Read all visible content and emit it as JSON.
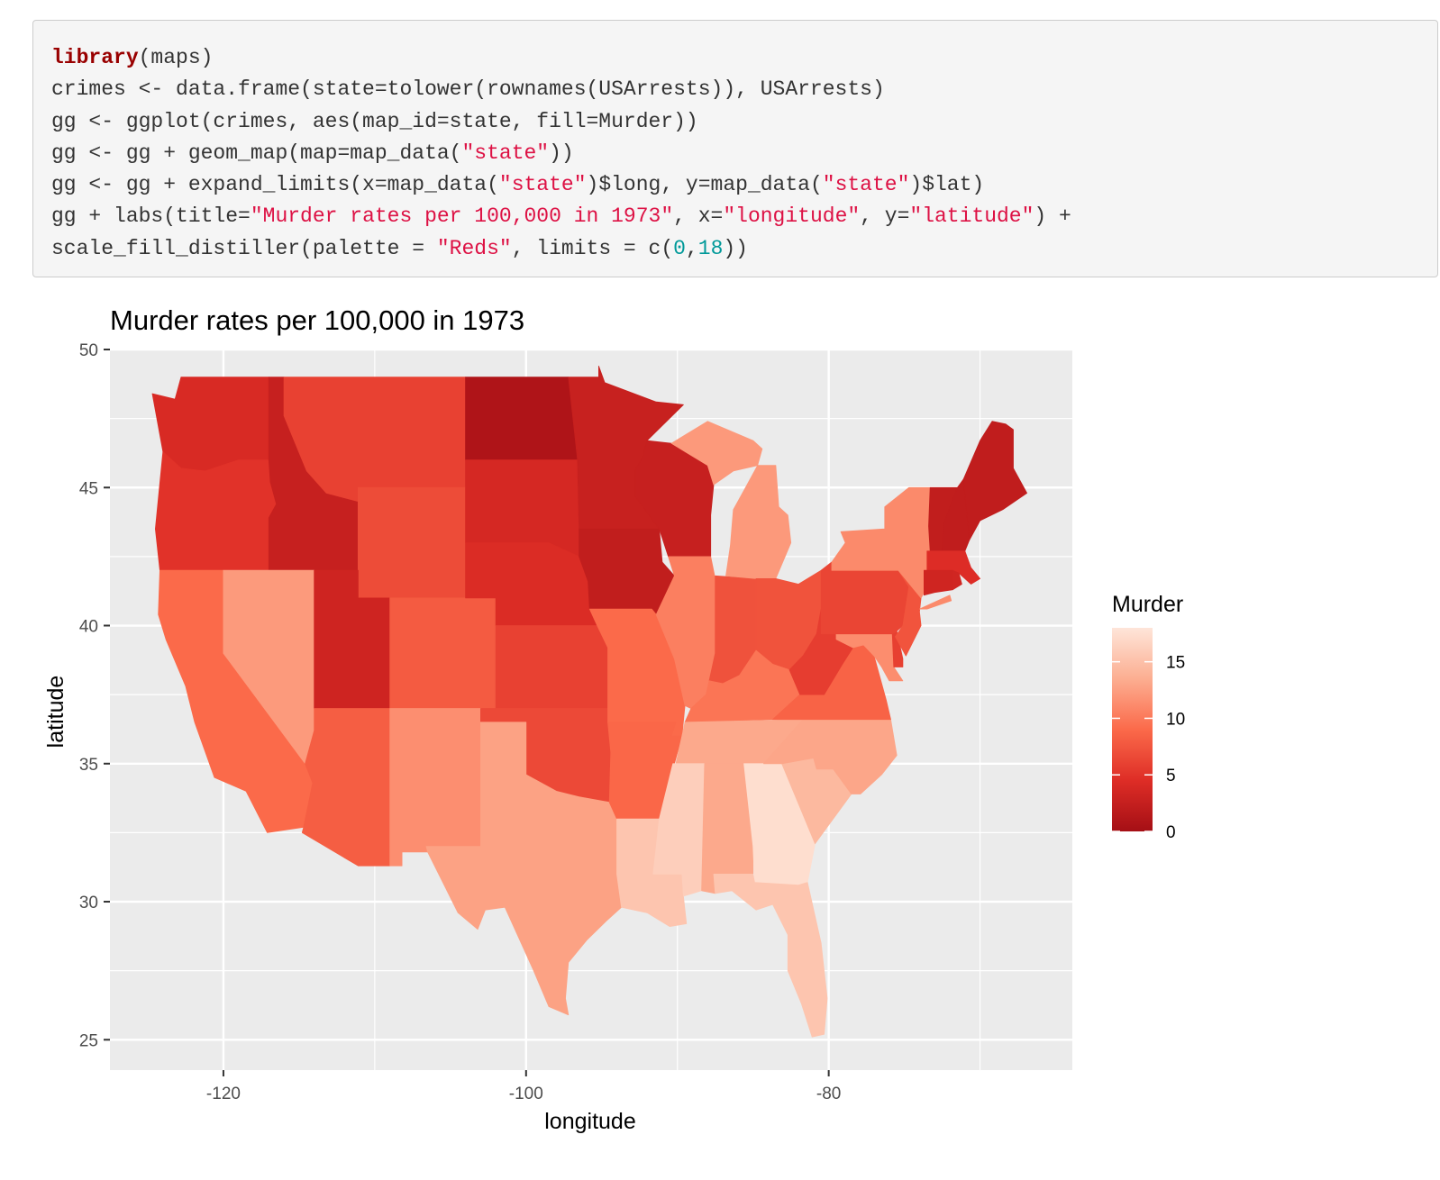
{
  "code": {
    "lines": [
      [
        {
          "t": "library",
          "c": "kw"
        },
        {
          "t": "(maps)"
        }
      ],
      [
        {
          "t": "crimes <- data.frame(state=tolower(rownames(USArrests)), USArrests)"
        }
      ],
      [
        {
          "t": "gg <- ggplot(crimes, aes(map_id=state, fill=Murder))"
        }
      ],
      [
        {
          "t": "gg <- gg + geom_map(map=map_data("
        },
        {
          "t": "\"state\"",
          "c": "str"
        },
        {
          "t": "))"
        }
      ],
      [
        {
          "t": "gg <- gg + expand_limits(x=map_data("
        },
        {
          "t": "\"state\"",
          "c": "str"
        },
        {
          "t": ")$long, y=map_data("
        },
        {
          "t": "\"state\"",
          "c": "str"
        },
        {
          "t": ")$lat)"
        }
      ],
      [
        {
          "t": "gg + labs(title="
        },
        {
          "t": "\"Murder rates per 100,000 in 1973\"",
          "c": "str"
        },
        {
          "t": ", x="
        },
        {
          "t": "\"longitude\"",
          "c": "str"
        },
        {
          "t": ", y="
        },
        {
          "t": "\"latitude\"",
          "c": "str"
        },
        {
          "t": ") +"
        }
      ],
      [
        {
          "t": "scale_fill_distiller(palette = "
        },
        {
          "t": "\"Reds\"",
          "c": "str"
        },
        {
          "t": ", limits = c("
        },
        {
          "t": "0",
          "c": "num"
        },
        {
          "t": ","
        },
        {
          "t": "18",
          "c": "num"
        },
        {
          "t": "))"
        }
      ]
    ]
  },
  "chart_data": {
    "type": "choropleth map",
    "title": "Murder rates per 100,000 in 1973",
    "xlabel": "longitude",
    "ylabel": "latitude",
    "xlim": [
      -127.5,
      -63.9
    ],
    "ylim": [
      23.9,
      50.0
    ],
    "x_ticks": [
      -120,
      -100,
      -80
    ],
    "y_ticks": [
      25,
      30,
      35,
      40,
      45,
      50
    ],
    "grid": true,
    "legend": {
      "title": "Murder",
      "position": "right",
      "limits": [
        0,
        18
      ],
      "ticks": [
        0,
        5,
        10,
        15
      ],
      "colors": [
        "#a50f15",
        "#de2d26",
        "#fb6a4a",
        "#fcae91",
        "#fee5d9"
      ]
    },
    "panel_background": "#ebebeb",
    "states": [
      {
        "name": "alabama",
        "murder": 13.2
      },
      {
        "name": "arizona",
        "murder": 8.1
      },
      {
        "name": "arkansas",
        "murder": 8.8
      },
      {
        "name": "california",
        "murder": 9.0
      },
      {
        "name": "colorado",
        "murder": 7.9
      },
      {
        "name": "connecticut",
        "murder": 3.3
      },
      {
        "name": "delaware",
        "murder": 5.9
      },
      {
        "name": "florida",
        "murder": 15.4
      },
      {
        "name": "georgia",
        "murder": 17.4
      },
      {
        "name": "idaho",
        "murder": 2.6
      },
      {
        "name": "illinois",
        "murder": 10.4
      },
      {
        "name": "indiana",
        "murder": 7.2
      },
      {
        "name": "iowa",
        "murder": 2.2
      },
      {
        "name": "kansas",
        "murder": 6.0
      },
      {
        "name": "kentucky",
        "murder": 9.7
      },
      {
        "name": "louisiana",
        "murder": 15.4
      },
      {
        "name": "maine",
        "murder": 2.1
      },
      {
        "name": "maryland",
        "murder": 11.3
      },
      {
        "name": "massachusetts",
        "murder": 4.4
      },
      {
        "name": "michigan",
        "murder": 12.1
      },
      {
        "name": "minnesota",
        "murder": 2.7
      },
      {
        "name": "mississippi",
        "murder": 16.1
      },
      {
        "name": "missouri",
        "murder": 9.0
      },
      {
        "name": "montana",
        "murder": 6.0
      },
      {
        "name": "nebraska",
        "murder": 4.3
      },
      {
        "name": "nevada",
        "murder": 12.2
      },
      {
        "name": "new hampshire",
        "murder": 2.1
      },
      {
        "name": "new jersey",
        "murder": 7.4
      },
      {
        "name": "new mexico",
        "murder": 11.4
      },
      {
        "name": "new york",
        "murder": 11.1
      },
      {
        "name": "north carolina",
        "murder": 13.0
      },
      {
        "name": "north dakota",
        "murder": 0.8
      },
      {
        "name": "ohio",
        "murder": 7.3
      },
      {
        "name": "oklahoma",
        "murder": 6.6
      },
      {
        "name": "oregon",
        "murder": 4.9
      },
      {
        "name": "pennsylvania",
        "murder": 6.3
      },
      {
        "name": "rhode island",
        "murder": 3.4
      },
      {
        "name": "south carolina",
        "murder": 14.4
      },
      {
        "name": "south dakota",
        "murder": 3.8
      },
      {
        "name": "tennessee",
        "murder": 13.2
      },
      {
        "name": "texas",
        "murder": 12.7
      },
      {
        "name": "utah",
        "murder": 3.2
      },
      {
        "name": "vermont",
        "murder": 2.2
      },
      {
        "name": "virginia",
        "murder": 8.5
      },
      {
        "name": "washington",
        "murder": 4.0
      },
      {
        "name": "west virginia",
        "murder": 5.7
      },
      {
        "name": "wisconsin",
        "murder": 2.6
      },
      {
        "name": "wyoming",
        "murder": 6.8
      }
    ]
  }
}
